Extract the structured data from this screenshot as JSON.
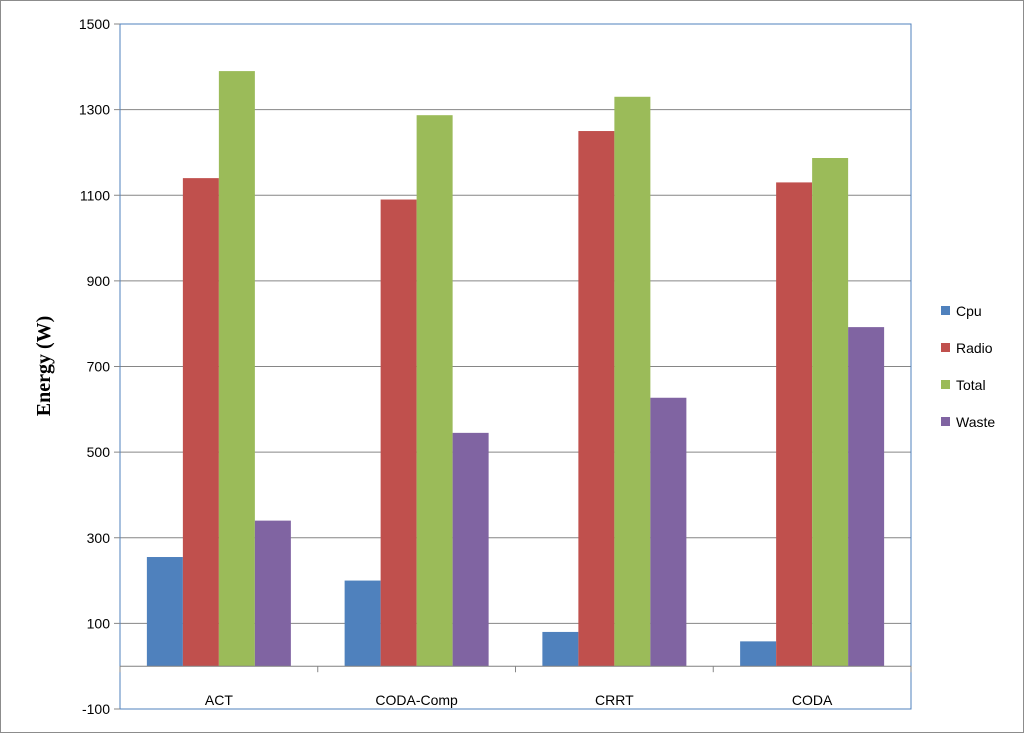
{
  "chart_data": {
    "type": "bar",
    "title": "",
    "xlabel": "",
    "ylabel": "Energy (W)",
    "ylim": [
      -100,
      1500
    ],
    "yticks": [
      -100,
      100,
      300,
      500,
      700,
      900,
      1100,
      1300,
      1500
    ],
    "grid": true,
    "legend_position": "right",
    "categories": [
      "ACT",
      "CODA-Comp",
      "CRRT",
      "CODA"
    ],
    "series": [
      {
        "name": "Cpu",
        "color": "#4F81BD",
        "values": [
          255,
          200,
          80,
          58
        ]
      },
      {
        "name": "Radio",
        "color": "#C0504D",
        "values": [
          1140,
          1090,
          1250,
          1130
        ]
      },
      {
        "name": "Total",
        "color": "#9BBB59",
        "values": [
          1390,
          1287,
          1330,
          1187
        ]
      },
      {
        "name": "Waste",
        "color": "#8064A2",
        "values": [
          340,
          545,
          627,
          792
        ]
      }
    ]
  }
}
